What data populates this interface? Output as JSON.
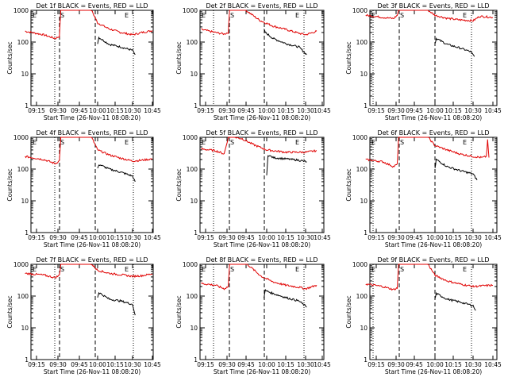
{
  "colors": {
    "events": "#000000",
    "lld": "#e00000",
    "background": "#ffffff"
  },
  "chart_data": [
    {
      "type": "line",
      "title": "Det 1f BLACK = Events, RED = LLD",
      "xlabel": "Start Time (26-Nov-11 08:08:20)",
      "ylabel": "Counts/sec",
      "xticks": [
        "09:15",
        "09:30",
        "09:45",
        "10:00",
        "10:15",
        "10:30",
        "10:45"
      ],
      "yticks": [
        "1",
        "10",
        "100",
        "1000"
      ],
      "markers": [
        "E",
        "S",
        "E"
      ],
      "ylim": [
        1,
        1000
      ],
      "log_y": true,
      "series": [
        {
          "name": "LLD",
          "color": "#e00000",
          "points": [
            [
              "09:07",
              220
            ],
            [
              "09:20",
              170
            ],
            [
              "09:28",
              130
            ],
            [
              "09:31",
              150
            ],
            [
              "09:32",
              1000
            ],
            [
              "09:55",
              1000
            ],
            [
              "10:00",
              400
            ],
            [
              "10:10",
              260
            ],
            [
              "10:20",
              200
            ],
            [
              "10:30",
              170
            ],
            [
              "10:37",
              200
            ],
            [
              "10:45",
              230
            ]
          ]
        },
        {
          "name": "Events",
          "color": "#000000",
          "points": [
            [
              "10:00",
              90
            ],
            [
              "10:01",
              140
            ],
            [
              "10:10",
              85
            ],
            [
              "10:20",
              70
            ],
            [
              "10:30",
              55
            ],
            [
              "10:32",
              40
            ]
          ]
        }
      ]
    },
    {
      "type": "line",
      "title": "Det 2f BLACK = Events, RED = LLD",
      "xlabel": "Start Time (26-Nov-11 08:08:20)",
      "ylabel": "Counts/sec",
      "xticks": [
        "09:15",
        "09:30",
        "09:45",
        "10:00",
        "10:15",
        "10:30",
        "10:45"
      ],
      "yticks": [
        "1",
        "10",
        "100",
        "1000"
      ],
      "markers": [
        "E",
        "S",
        "E"
      ],
      "ylim": [
        1,
        1000
      ],
      "log_y": true,
      "series": [
        {
          "name": "LLD",
          "color": "#e00000",
          "points": [
            [
              "09:12",
              250
            ],
            [
              "09:22",
              200
            ],
            [
              "09:28",
              180
            ],
            [
              "09:31",
              200
            ],
            [
              "09:32",
              1000
            ],
            [
              "09:45",
              1000
            ],
            [
              "09:55",
              480
            ],
            [
              "10:05",
              320
            ],
            [
              "10:15",
              250
            ],
            [
              "10:25",
              190
            ],
            [
              "10:30",
              170
            ],
            [
              "10:40",
              220
            ]
          ]
        },
        {
          "name": "Events",
          "color": "#000000",
          "points": [
            [
              "09:58",
              250
            ],
            [
              "09:59",
              200
            ],
            [
              "10:05",
              130
            ],
            [
              "10:15",
              90
            ],
            [
              "10:25",
              70
            ],
            [
              "10:31",
              40
            ]
          ]
        }
      ]
    },
    {
      "type": "line",
      "title": "Det 3f BLACK = Events, RED = LLD",
      "xlabel": "Start Time (26-Nov-11 08:08:20)",
      "ylabel": "Counts/sec",
      "xticks": [
        "09:15",
        "09:30",
        "09:45",
        "10:00",
        "10:15",
        "10:30",
        "10:45"
      ],
      "yticks": [
        "1",
        "10",
        "100",
        "1000"
      ],
      "markers": [
        "E",
        "S",
        "E"
      ],
      "ylim": [
        1,
        1000
      ],
      "log_y": true,
      "series": [
        {
          "name": "LLD",
          "color": "#e00000",
          "points": [
            [
              "09:07",
              700
            ],
            [
              "09:20",
              600
            ],
            [
              "09:28",
              550
            ],
            [
              "09:31",
              700
            ],
            [
              "09:32",
              1000
            ],
            [
              "09:55",
              1000
            ],
            [
              "10:00",
              700
            ],
            [
              "10:10",
              560
            ],
            [
              "10:20",
              500
            ],
            [
              "10:30",
              470
            ],
            [
              "10:35",
              650
            ],
            [
              "10:45",
              600
            ]
          ]
        },
        {
          "name": "Events",
          "color": "#000000",
          "points": [
            [
              "10:00",
              90
            ],
            [
              "10:01",
              130
            ],
            [
              "10:10",
              85
            ],
            [
              "10:20",
              65
            ],
            [
              "10:28",
              50
            ],
            [
              "10:31",
              35
            ]
          ]
        }
      ]
    },
    {
      "type": "line",
      "title": "Det 4f BLACK = Events, RED = LLD",
      "xlabel": "Start Time (26-Nov-11 08:08:20)",
      "ylabel": "Counts/sec",
      "xticks": [
        "09:15",
        "09:30",
        "09:45",
        "10:00",
        "10:15",
        "10:30",
        "10:45"
      ],
      "yticks": [
        "1",
        "10",
        "100",
        "1000"
      ],
      "markers": [
        "E",
        "S",
        "E"
      ],
      "ylim": [
        1,
        1000
      ],
      "log_y": true,
      "series": [
        {
          "name": "LLD",
          "color": "#e00000",
          "points": [
            [
              "09:07",
              250
            ],
            [
              "09:20",
              200
            ],
            [
              "09:28",
              150
            ],
            [
              "09:31",
              180
            ],
            [
              "09:32",
              1000
            ],
            [
              "09:55",
              1000
            ],
            [
              "10:00",
              400
            ],
            [
              "10:10",
              280
            ],
            [
              "10:20",
              220
            ],
            [
              "10:30",
              180
            ],
            [
              "10:37",
              190
            ],
            [
              "10:45",
              210
            ]
          ]
        },
        {
          "name": "Events",
          "color": "#000000",
          "points": [
            [
              "10:00",
              100
            ],
            [
              "10:01",
              140
            ],
            [
              "10:10",
              100
            ],
            [
              "10:20",
              80
            ],
            [
              "10:30",
              60
            ],
            [
              "10:32",
              40
            ]
          ]
        }
      ]
    },
    {
      "type": "line",
      "title": "Det 5f BLACK = Events, RED = LLD",
      "xlabel": "Start Time (26-Nov-11 08:08:20)",
      "ylabel": "Counts/sec",
      "xticks": [
        "09:15",
        "09:30",
        "09:45",
        "10:00",
        "10:15",
        "10:30",
        "10:45"
      ],
      "yticks": [
        "1",
        "10",
        "100",
        "1000"
      ],
      "markers": [
        "E",
        "S",
        "E"
      ],
      "ylim": [
        1,
        1000
      ],
      "log_y": true,
      "series": [
        {
          "name": "LLD",
          "color": "#e00000",
          "points": [
            [
              "09:12",
              430
            ],
            [
              "09:22",
              380
            ],
            [
              "09:28",
              300
            ],
            [
              "09:31",
              1000
            ],
            [
              "09:36",
              1000
            ],
            [
              "09:42",
              900
            ],
            [
              "09:50",
              600
            ],
            [
              "10:00",
              400
            ],
            [
              "10:15",
              340
            ],
            [
              "10:30",
              340
            ],
            [
              "10:40",
              380
            ]
          ]
        },
        {
          "name": "Events",
          "color": "#000000",
          "points": [
            [
              "10:00",
              60
            ],
            [
              "10:01",
              280
            ],
            [
              "10:05",
              230
            ],
            [
              "10:15",
              210
            ],
            [
              "10:25",
              190
            ],
            [
              "10:31",
              170
            ]
          ]
        }
      ]
    },
    {
      "type": "line",
      "title": "Det 6f BLACK = Events, RED = LLD",
      "xlabel": "Start Time (26-Nov-11 08:08:20)",
      "ylabel": "Counts/sec",
      "xticks": [
        "09:15",
        "09:30",
        "09:45",
        "10:00",
        "10:15",
        "10:30",
        "10:45"
      ],
      "yticks": [
        "1",
        "10",
        "100",
        "1000"
      ],
      "markers": [
        "E",
        "S",
        "E"
      ],
      "ylim": [
        1,
        1000
      ],
      "log_y": true,
      "series": [
        {
          "name": "LLD",
          "color": "#e00000",
          "points": [
            [
              "09:07",
              200
            ],
            [
              "09:20",
              170
            ],
            [
              "09:28",
              120
            ],
            [
              "09:31",
              140
            ],
            [
              "09:32",
              1000
            ],
            [
              "09:55",
              1000
            ],
            [
              "10:00",
              550
            ],
            [
              "10:10",
              400
            ],
            [
              "10:20",
              300
            ],
            [
              "10:30",
              250
            ],
            [
              "10:37",
              230
            ],
            [
              "10:40",
              250
            ],
            [
              "10:41",
              800
            ],
            [
              "10:42",
              230
            ]
          ]
        },
        {
          "name": "Events",
          "color": "#000000",
          "points": [
            [
              "10:00",
              100
            ],
            [
              "10:01",
              200
            ],
            [
              "10:10",
              120
            ],
            [
              "10:20",
              90
            ],
            [
              "10:30",
              70
            ],
            [
              "10:33",
              45
            ]
          ]
        }
      ]
    },
    {
      "type": "line",
      "title": "Det 7f BLACK = Events, RED = LLD",
      "xlabel": "Start Time (26-Nov-11 08:08:20)",
      "ylabel": "Counts/sec",
      "xticks": [
        "09:15",
        "09:30",
        "09:45",
        "10:00",
        "10:15",
        "10:30",
        "10:45"
      ],
      "yticks": [
        "1",
        "10",
        "100",
        "1000"
      ],
      "markers": [
        "E",
        "S",
        "E"
      ],
      "ylim": [
        1,
        1000
      ],
      "log_y": true,
      "series": [
        {
          "name": "LLD",
          "color": "#e00000",
          "points": [
            [
              "09:07",
              520
            ],
            [
              "09:20",
              460
            ],
            [
              "09:28",
              380
            ],
            [
              "09:31",
              450
            ],
            [
              "09:32",
              1000
            ],
            [
              "09:55",
              1000
            ],
            [
              "10:00",
              650
            ],
            [
              "10:10",
              520
            ],
            [
              "10:20",
              470
            ],
            [
              "10:30",
              420
            ],
            [
              "10:37",
              440
            ],
            [
              "10:45",
              500
            ]
          ]
        },
        {
          "name": "Events",
          "color": "#000000",
          "points": [
            [
              "10:00",
              90
            ],
            [
              "10:01",
              130
            ],
            [
              "10:10",
              80
            ],
            [
              "10:20",
              70
            ],
            [
              "10:30",
              55
            ],
            [
              "10:32",
              25
            ]
          ]
        }
      ]
    },
    {
      "type": "line",
      "title": "Det 8f BLACK = Events, RED = LLD",
      "xlabel": "Start Time (26-Nov-11 08:08:20)",
      "ylabel": "Counts/sec",
      "xticks": [
        "09:15",
        "09:30",
        "09:45",
        "10:00",
        "10:15",
        "10:30",
        "10:45"
      ],
      "yticks": [
        "1",
        "10",
        "100",
        "1000"
      ],
      "markers": [
        "E",
        "S",
        "E"
      ],
      "ylim": [
        1,
        1000
      ],
      "log_y": true,
      "series": [
        {
          "name": "LLD",
          "color": "#e00000",
          "points": [
            [
              "09:12",
              250
            ],
            [
              "09:22",
              220
            ],
            [
              "09:28",
              170
            ],
            [
              "09:31",
              200
            ],
            [
              "09:32",
              1000
            ],
            [
              "09:46",
              1000
            ],
            [
              "09:56",
              420
            ],
            [
              "10:05",
              280
            ],
            [
              "10:15",
              220
            ],
            [
              "10:25",
              190
            ],
            [
              "10:30",
              170
            ],
            [
              "10:40",
              220
            ]
          ]
        },
        {
          "name": "Events",
          "color": "#000000",
          "points": [
            [
              "09:58",
              90
            ],
            [
              "09:59",
              150
            ],
            [
              "10:05",
              120
            ],
            [
              "10:15",
              90
            ],
            [
              "10:25",
              70
            ],
            [
              "10:31",
              45
            ]
          ]
        }
      ]
    },
    {
      "type": "line",
      "title": "Det 9f BLACK = Events, RED = LLD",
      "xlabel": "Start Time (26-Nov-11 08:08:20)",
      "ylabel": "Counts/sec",
      "xticks": [
        "09:15",
        "09:30",
        "09:45",
        "10:00",
        "10:15",
        "10:30",
        "10:45"
      ],
      "yticks": [
        "1",
        "10",
        "100",
        "1000"
      ],
      "markers": [
        "E",
        "S",
        "E"
      ],
      "ylim": [
        1,
        1000
      ],
      "log_y": true,
      "series": [
        {
          "name": "LLD",
          "color": "#e00000",
          "points": [
            [
              "09:07",
              240
            ],
            [
              "09:20",
              200
            ],
            [
              "09:28",
              160
            ],
            [
              "09:31",
              180
            ],
            [
              "09:32",
              1000
            ],
            [
              "09:55",
              1000
            ],
            [
              "10:00",
              450
            ],
            [
              "10:10",
              300
            ],
            [
              "10:20",
              240
            ],
            [
              "10:30",
              200
            ],
            [
              "10:37",
              210
            ],
            [
              "10:45",
              220
            ]
          ]
        },
        {
          "name": "Events",
          "color": "#000000",
          "points": [
            [
              "10:00",
              80
            ],
            [
              "10:01",
              120
            ],
            [
              "10:10",
              80
            ],
            [
              "10:20",
              65
            ],
            [
              "10:30",
              50
            ],
            [
              "10:32",
              35
            ]
          ]
        }
      ]
    }
  ]
}
